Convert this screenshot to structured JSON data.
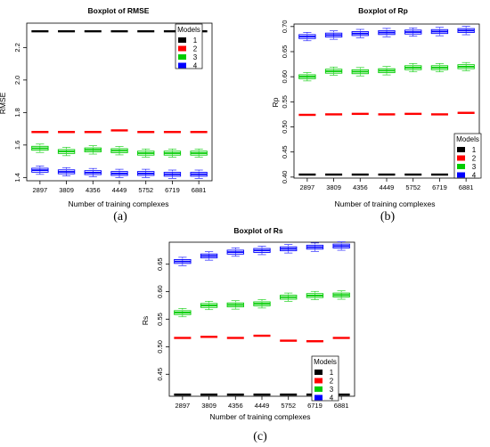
{
  "chart_data": [
    {
      "type": "boxplot",
      "title": "Boxplot of RMSE",
      "xlabel": "Number of training complexes",
      "ylabel": "RMSE",
      "categories": [
        "2897",
        "3809",
        "4356",
        "4449",
        "5752",
        "6719",
        "6881"
      ],
      "ylim": [
        1.38,
        2.35
      ],
      "yticks": [
        "1.4",
        "1.6",
        "1.8",
        "2.0",
        "2.2"
      ],
      "legend": {
        "title": "Models",
        "position": "top-right",
        "entries": [
          "1",
          "2",
          "3",
          "4"
        ]
      },
      "series": [
        {
          "name": "1",
          "color": "#000000",
          "values": [
            2.3,
            2.3,
            2.3,
            2.3,
            2.3,
            2.3,
            2.3
          ]
        },
        {
          "name": "2",
          "color": "#ff0000",
          "values": [
            1.68,
            1.68,
            1.68,
            1.69,
            1.68,
            1.68,
            1.68
          ]
        },
        {
          "name": "3",
          "color": "#00cc00",
          "values": [
            1.58,
            1.56,
            1.57,
            1.565,
            1.55,
            1.55,
            1.55
          ]
        },
        {
          "name": "4",
          "color": "#0000ff",
          "values": [
            1.445,
            1.435,
            1.43,
            1.425,
            1.425,
            1.42,
            1.42
          ]
        }
      ],
      "caption": "(a)"
    },
    {
      "type": "boxplot",
      "title": "Boxplot of Rp",
      "xlabel": "Number of training complexes",
      "ylabel": "Rp",
      "categories": [
        "2897",
        "3809",
        "4356",
        "4449",
        "5752",
        "6719",
        "6881"
      ],
      "ylim": [
        0.398,
        0.705
      ],
      "yticks": [
        "0.40",
        "0.45",
        "0.50",
        "0.55",
        "0.60",
        "0.65",
        "0.70"
      ],
      "legend": {
        "title": "Models",
        "position": "bottom-right",
        "entries": [
          "1",
          "2",
          "3",
          "4"
        ]
      },
      "series": [
        {
          "name": "1",
          "color": "#000000",
          "values": [
            0.405,
            0.405,
            0.405,
            0.405,
            0.405,
            0.405,
            0.405
          ]
        },
        {
          "name": "2",
          "color": "#ff0000",
          "values": [
            0.524,
            0.525,
            0.526,
            0.525,
            0.526,
            0.525,
            0.528
          ]
        },
        {
          "name": "3",
          "color": "#00cc00",
          "values": [
            0.6,
            0.611,
            0.61,
            0.612,
            0.618,
            0.618,
            0.62
          ]
        },
        {
          "name": "4",
          "color": "#0000ff",
          "values": [
            0.68,
            0.683,
            0.686,
            0.688,
            0.689,
            0.69,
            0.692
          ]
        }
      ],
      "caption": "(b)"
    },
    {
      "type": "boxplot",
      "title": "Boxplot of Rs",
      "xlabel": "Number of training complexes",
      "ylabel": "Rs",
      "categories": [
        "2897",
        "3809",
        "4356",
        "4449",
        "5752",
        "6719",
        "6881"
      ],
      "ylim": [
        0.41,
        0.69
      ],
      "yticks": [
        "0.45",
        "0.50",
        "0.55",
        "0.60",
        "0.65"
      ],
      "legend": {
        "title": "Models",
        "position": "bottom-right",
        "entries": [
          "1",
          "2",
          "3",
          "4"
        ]
      },
      "series": [
        {
          "name": "1",
          "color": "#000000",
          "values": [
            0.413,
            0.413,
            0.413,
            0.413,
            0.413,
            0.413,
            0.413
          ]
        },
        {
          "name": "2",
          "color": "#ff0000",
          "values": [
            0.516,
            0.518,
            0.516,
            0.52,
            0.511,
            0.51,
            0.516
          ]
        },
        {
          "name": "3",
          "color": "#00cc00",
          "values": [
            0.562,
            0.575,
            0.576,
            0.578,
            0.59,
            0.593,
            0.594
          ]
        },
        {
          "name": "4",
          "color": "#0000ff",
          "values": [
            0.655,
            0.665,
            0.672,
            0.675,
            0.678,
            0.681,
            0.683
          ]
        }
      ],
      "caption": "(c)"
    }
  ]
}
